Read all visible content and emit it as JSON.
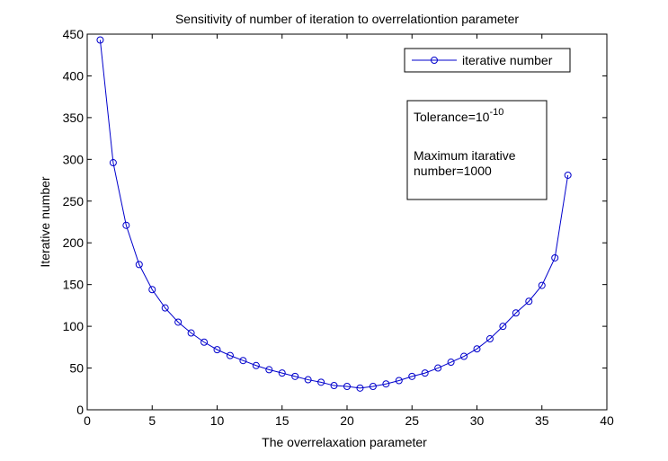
{
  "chart_data": {
    "type": "line",
    "title": "Sensitivity of number of iteration to overrelationtion parameter",
    "xlabel": "The overrelaxation parameter",
    "ylabel": "Iterative number",
    "xlim": [
      0,
      40
    ],
    "ylim": [
      0,
      450
    ],
    "xticks": [
      0,
      5,
      10,
      15,
      20,
      25,
      30,
      35,
      40
    ],
    "yticks": [
      0,
      50,
      100,
      150,
      200,
      250,
      300,
      350,
      400,
      450
    ],
    "grid": false,
    "legend_position": "top-right",
    "series": [
      {
        "name": "iterative number",
        "color": "#0000cc",
        "marker": "circle",
        "x": [
          1,
          2,
          3,
          4,
          5,
          6,
          7,
          8,
          9,
          10,
          11,
          12,
          13,
          14,
          15,
          16,
          17,
          18,
          19,
          20,
          21,
          22,
          23,
          24,
          25,
          26,
          27,
          28,
          29,
          30,
          31,
          32,
          33,
          34,
          35,
          36,
          37
        ],
        "y": [
          443,
          296,
          221,
          174,
          144,
          122,
          105,
          92,
          81,
          72,
          65,
          59,
          53,
          48,
          44,
          40,
          36,
          33,
          29,
          28,
          26,
          28,
          31,
          35,
          40,
          44,
          50,
          57,
          64,
          73,
          85,
          100,
          116,
          130,
          149,
          182,
          281
        ]
      }
    ],
    "annotation": {
      "tolerance_label": "Tolerance=10",
      "tolerance_exponent": "-10",
      "max_line1": "Maximum itarative",
      "max_line2": "number=1000"
    }
  }
}
